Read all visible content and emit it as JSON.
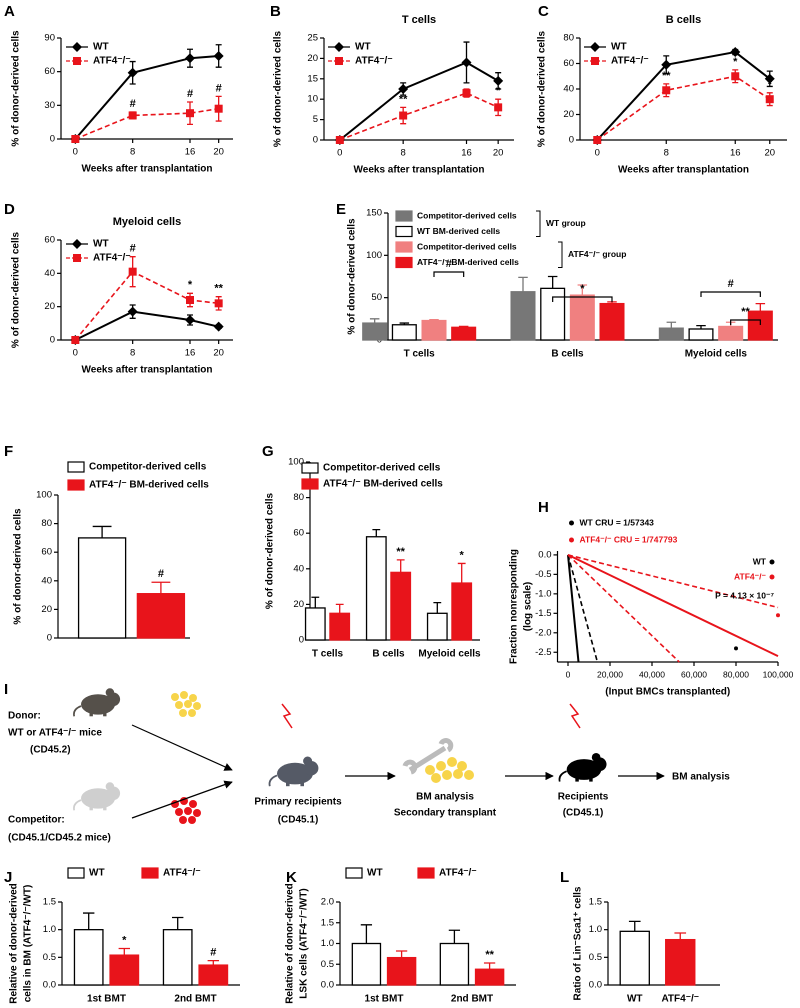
{
  "chart_data": [
    {
      "panel": "A",
      "type": "line",
      "x_label": "Weeks after transplantation",
      "y_label": "% of donor-derived cells",
      "x": [
        0,
        8,
        16,
        20
      ],
      "xlim": [
        -2,
        22
      ],
      "xticks": [
        0,
        8,
        16,
        20
      ],
      "ylim": [
        0,
        90
      ],
      "yticks": [
        0,
        30,
        60,
        90
      ],
      "series": [
        {
          "name": "WT",
          "color": "#000000",
          "marker": "diamond",
          "values": [
            0,
            59,
            72,
            74
          ],
          "errors": [
            0,
            10,
            8,
            10
          ]
        },
        {
          "name": "ATF4⁻/⁻",
          "color": "#e8141b",
          "marker": "square",
          "dashed": true,
          "values": [
            0,
            21,
            23,
            27
          ],
          "errors": [
            0,
            3,
            10,
            11
          ],
          "annotations": [
            null,
            "#",
            "#",
            "#"
          ]
        }
      ]
    },
    {
      "panel": "B",
      "type": "line",
      "title": "T cells",
      "x_label": "Weeks after transplantation",
      "y_label": "% of donor-derived cells",
      "x": [
        0,
        8,
        16,
        20
      ],
      "xlim": [
        -2,
        22
      ],
      "xticks": [
        0,
        8,
        16,
        20
      ],
      "ylim": [
        0,
        25
      ],
      "yticks": [
        0,
        5,
        10,
        15,
        20,
        25
      ],
      "series": [
        {
          "name": "WT",
          "color": "#000000",
          "marker": "diamond",
          "values": [
            0,
            12.5,
            19,
            14.5
          ],
          "errors": [
            0,
            1.5,
            5,
            2
          ]
        },
        {
          "name": "ATF4⁻/⁻",
          "color": "#e8141b",
          "marker": "square",
          "dashed": true,
          "values": [
            0,
            6,
            11.5,
            8
          ],
          "errors": [
            0,
            2,
            1,
            2
          ],
          "annotations": [
            null,
            "**",
            null,
            "*"
          ]
        }
      ]
    },
    {
      "panel": "C",
      "type": "line",
      "title": "B cells",
      "x_label": "Weeks after transplantation",
      "y_label": "% of donor-derived cells",
      "x": [
        0,
        8,
        16,
        20
      ],
      "xlim": [
        -2,
        22
      ],
      "xticks": [
        0,
        8,
        16,
        20
      ],
      "ylim": [
        0,
        80
      ],
      "yticks": [
        0,
        20,
        40,
        60,
        80
      ],
      "series": [
        {
          "name": "WT",
          "color": "#000000",
          "marker": "diamond",
          "values": [
            0,
            59,
            69,
            48
          ],
          "errors": [
            0,
            7,
            2,
            6
          ]
        },
        {
          "name": "ATF4⁻/⁻",
          "color": "#e8141b",
          "marker": "square",
          "dashed": true,
          "values": [
            0,
            39,
            50,
            32
          ],
          "errors": [
            0,
            5,
            5,
            5
          ],
          "annotations": [
            null,
            "**",
            "*",
            "*"
          ]
        }
      ]
    },
    {
      "panel": "D",
      "type": "line",
      "title": "Myeloid cells",
      "x_label": "Weeks after transplantation",
      "y_label": "% of donor-derived cells",
      "x": [
        0,
        8,
        16,
        20
      ],
      "xlim": [
        -2,
        22
      ],
      "xticks": [
        0,
        8,
        16,
        20
      ],
      "ylim": [
        0,
        60
      ],
      "yticks": [
        0,
        20,
        40,
        60
      ],
      "series": [
        {
          "name": "WT",
          "color": "#000000",
          "marker": "diamond",
          "values": [
            0,
            17,
            12,
            8
          ],
          "errors": [
            0,
            4,
            3,
            1
          ]
        },
        {
          "name": "ATF4⁻/⁻",
          "color": "#e8141b",
          "marker": "square",
          "dashed": true,
          "values": [
            0,
            41,
            24,
            22
          ],
          "errors": [
            0,
            9,
            4,
            4
          ],
          "annotations": [
            null,
            "#",
            "*",
            "**"
          ]
        }
      ]
    },
    {
      "panel": "E",
      "type": "bar",
      "y_label": "% of donor-derived cells",
      "categories": [
        "T cells",
        "B cells",
        "Myeloid cells"
      ],
      "ylim": [
        0,
        150
      ],
      "yticks": [
        0,
        50,
        100,
        150
      ],
      "series": [
        {
          "name": "Competitor-derived cells",
          "color": "#777777",
          "values": [
            20,
            57,
            14
          ],
          "errors": [
            5,
            17,
            7
          ]
        },
        {
          "name": "WT BM-derived cells",
          "color": "#ffffff",
          "values": [
            18,
            61,
            13
          ],
          "errors": [
            2,
            14,
            4
          ]
        },
        {
          "name": "Competitor-derived cells",
          "color": "#f08080",
          "values": [
            23,
            53,
            16
          ],
          "errors": [
            1,
            12,
            5
          ]
        },
        {
          "name": "ATF4⁻/⁻ BM-derived cells",
          "color": "#e8141b",
          "values": [
            15,
            43,
            34
          ],
          "errors": [
            1,
            2,
            9
          ]
        }
      ],
      "legend_groups": [
        "WT group",
        "ATF4⁻/⁻ group"
      ],
      "brackets": [
        "#",
        "*",
        "#",
        "**"
      ]
    },
    {
      "panel": "F",
      "type": "bar",
      "y_label": "% of donor-derived cells",
      "categories": [
        null
      ],
      "ylim": [
        0,
        100
      ],
      "yticks": [
        0,
        20,
        40,
        60,
        80,
        100
      ],
      "series": [
        {
          "name": "Competitor-derived cells",
          "color": "#ffffff",
          "values": [
            70
          ],
          "errors": [
            8
          ]
        },
        {
          "name": "ATF4⁻/⁻ BM-derived cells",
          "color": "#e8141b",
          "values": [
            31
          ],
          "errors": [
            8
          ],
          "annotations": [
            "#"
          ]
        }
      ]
    },
    {
      "panel": "G",
      "type": "bar",
      "y_label": "% of donor-derived cells",
      "categories": [
        "T cells",
        "B cells",
        "Myeloid cells"
      ],
      "ylim": [
        0,
        100
      ],
      "yticks": [
        0,
        20,
        40,
        60,
        80,
        100
      ],
      "series": [
        {
          "name": "Competitor-derived cells",
          "color": "#ffffff",
          "values": [
            18,
            58,
            15
          ],
          "errors": [
            6,
            4,
            6
          ]
        },
        {
          "name": "ATF4⁻/⁻ BM-derived cells",
          "color": "#e8141b",
          "values": [
            15,
            38,
            32
          ],
          "errors": [
            5,
            7,
            11
          ],
          "annotations": [
            null,
            "**",
            "*"
          ]
        }
      ]
    },
    {
      "panel": "H",
      "type": "line",
      "x_label": "(Input BMCs transplanted)",
      "y_label": [
        "Fraction nonresponding",
        "(log scale)"
      ],
      "xlim": [
        -5000,
        100000
      ],
      "xticks": [
        0,
        {
          "value": 20000,
          "label": "20,000"
        },
        {
          "value": 40000,
          "label": "40,000"
        },
        {
          "value": 60000,
          "label": "60,000"
        },
        {
          "value": 80000,
          "label": "80,000"
        },
        {
          "value": 100000,
          "label": "100,000"
        }
      ],
      "ylim": [
        -2.75,
        0.1
      ],
      "yticks": [
        {
          "value": 0,
          "label": "0.0"
        },
        -0.5,
        {
          "value": -1,
          "label": "-1.0"
        },
        -1.5,
        {
          "value": -2,
          "label": "-2.0"
        },
        -2.5
      ],
      "series": [
        {
          "name": "WT",
          "color": "#000000",
          "x": [
            0,
            5000
          ],
          "values": [
            0,
            -2.75
          ]
        },
        {
          "name": null,
          "color": "#000000",
          "dashed": true,
          "x": [
            0,
            14000
          ],
          "values": [
            0,
            -2.75
          ]
        },
        {
          "name": "ATF4⁻/⁻",
          "color": "#e8141b",
          "x": [
            0,
            100000
          ],
          "values": [
            0,
            -2.6
          ]
        },
        {
          "name": null,
          "color": "#e8141b",
          "dashed": true,
          "x": [
            0,
            53000
          ],
          "values": [
            0,
            -2.75
          ]
        },
        {
          "name": null,
          "color": "#e8141b",
          "dashed": true,
          "x": [
            0,
            100000
          ],
          "values": [
            0,
            -1.35
          ]
        }
      ],
      "points": {
        "x": [
          80000,
          100000
        ],
        "values": [
          -2.4,
          -1.55
        ],
        "colors": [
          "#000000",
          "#e8141b"
        ]
      },
      "notes": [
        {
          "text": "WT CRU = 1/57343",
          "color": "#000000"
        },
        {
          "text": "ATF4⁻/⁻ CRU = 1/747793",
          "color": "#e8141b"
        }
      ],
      "p_value": "P = 4.13 × 10⁻⁷"
    },
    {
      "panel": "J",
      "type": "bar",
      "y_label": [
        "Relative of donor-derived",
        "cells in BM (ATF4⁻/⁻/WT)"
      ],
      "categories": [
        "1st BMT",
        "2nd BMT"
      ],
      "ylim": [
        0,
        1.5
      ],
      "yticks": [
        {
          "value": 0,
          "label": "0.0"
        },
        0.5,
        {
          "value": 1,
          "label": "1.0"
        },
        1.5
      ],
      "series": [
        {
          "name": "WT",
          "color": "#ffffff",
          "values": [
            1.0,
            1.0
          ],
          "errors": [
            0.3,
            0.22
          ]
        },
        {
          "name": "ATF4⁻/⁻",
          "color": "#e8141b",
          "values": [
            0.54,
            0.36
          ],
          "errors": [
            0.12,
            0.08
          ],
          "annotations": [
            "*",
            "#"
          ]
        }
      ]
    },
    {
      "panel": "K",
      "type": "bar",
      "y_label": [
        "Relative of donor-derived",
        "LSK cells (ATF4⁻/⁻/WT)"
      ],
      "categories": [
        "1st BMT",
        "2nd BMT"
      ],
      "ylim": [
        0,
        2
      ],
      "yticks": [
        {
          "value": 0,
          "label": "0.0"
        },
        0.5,
        {
          "value": 1,
          "label": "1.0"
        },
        1.5,
        {
          "value": 2,
          "label": "2.0"
        }
      ],
      "series": [
        {
          "name": "WT",
          "color": "#ffffff",
          "values": [
            1.0,
            1.0
          ],
          "errors": [
            0.45,
            0.32
          ]
        },
        {
          "name": "ATF4⁻/⁻",
          "color": "#e8141b",
          "values": [
            0.66,
            0.38
          ],
          "errors": [
            0.16,
            0.15
          ],
          "annotations": [
            null,
            "**"
          ]
        }
      ]
    },
    {
      "panel": "L",
      "type": "bar",
      "y_label": "Ratio of Lin⁻Sca1⁺ cells",
      "categories": [
        "WT",
        "ATF4⁻/⁻"
      ],
      "ylim": [
        0,
        1.5
      ],
      "yticks": [
        {
          "value": 0,
          "label": "0.0"
        },
        0.5,
        {
          "value": 1,
          "label": "1.0"
        },
        1.5
      ],
      "series": [
        {
          "colors": [
            "#ffffff",
            "#e8141b"
          ],
          "values": [
            0.97,
            0.82
          ],
          "errors": [
            0.18,
            0.12
          ]
        }
      ]
    }
  ],
  "schematic": {
    "panel": "I",
    "donor": "Donor:",
    "donor_mice": "WT or ATF4⁻/⁻ mice",
    "donor_cd": "(CD45.2)",
    "competitor": "Competitor:",
    "competitor_cd": "(CD45.1/CD45.2 mice)",
    "primary": "Primary recipients",
    "primary_cd": "(CD45.1)",
    "bm_analysis": "BM analysis",
    "secondary": "Secondary transplant",
    "recipients": "Recipients",
    "recipients_cd": "(CD45.1)",
    "final": "BM analysis"
  }
}
